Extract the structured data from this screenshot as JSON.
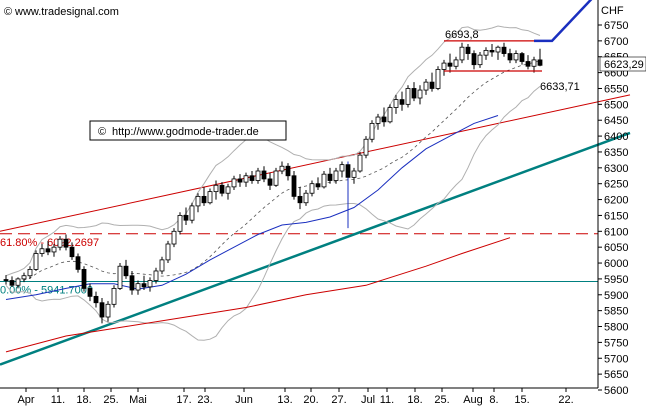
{
  "header": {
    "brand": "www.tradesignal.com",
    "copyright_symbol": "©",
    "copyright_url": "http://www.godmode-trader.de",
    "currency": "CHF",
    "last_price": "6623,29"
  },
  "chart_data": {
    "type": "candlestick",
    "ylim": [
      5600,
      6850
    ],
    "y_ticks": [
      6750,
      6700,
      6650,
      6600,
      6550,
      6500,
      6450,
      6400,
      6350,
      6300,
      6250,
      6200,
      6150,
      6100,
      6050,
      6000,
      5950,
      5900,
      5850,
      5800,
      5750,
      5700,
      5650,
      5600
    ],
    "x_ticks": [
      "Apr",
      "11.",
      "18.",
      "25.",
      "Mai",
      "17.",
      "23.",
      "Jun",
      "13.",
      "20.",
      "27.",
      "Jul",
      "11.",
      "18.",
      "25.",
      "Aug",
      "8.",
      "15.",
      "22."
    ],
    "horizontal_lines": [
      {
        "label": "61.80% - 6092.2697",
        "value": 6092.27,
        "color": "#cc0000",
        "style": "dashed"
      },
      {
        "label": "0.00% - 5941.7002",
        "value": 5941.7,
        "color": "#008080",
        "style": "solid"
      },
      {
        "label": "",
        "value": 6840,
        "color": "#cc0000",
        "style": "solid"
      }
    ],
    "annotations": [
      {
        "text": "6693,8",
        "value": 6693.8
      },
      {
        "text": "6633,71",
        "value": 6633.71
      }
    ],
    "trend_lines": [
      {
        "name": "",
        "color": "#008080",
        "from": [
          0,
          5680
        ],
        "to": [
          104,
          6410
        ]
      },
      {
        "name": "",
        "color": "#cc0000",
        "from": [
          0,
          6100
        ],
        "to": [
          104,
          6530
        ]
      }
    ],
    "candles": [
      {
        "o": 5948,
        "h": 5962,
        "l": 5932,
        "c": 5945
      },
      {
        "o": 5945,
        "h": 5958,
        "l": 5925,
        "c": 5930
      },
      {
        "o": 5930,
        "h": 5955,
        "l": 5920,
        "c": 5950
      },
      {
        "o": 5950,
        "h": 5970,
        "l": 5940,
        "c": 5960
      },
      {
        "o": 5960,
        "h": 5990,
        "l": 5950,
        "c": 5980
      },
      {
        "o": 5980,
        "h": 6040,
        "l": 5975,
        "c": 6030
      },
      {
        "o": 6030,
        "h": 6060,
        "l": 6020,
        "c": 6045
      },
      {
        "o": 6045,
        "h": 6070,
        "l": 6025,
        "c": 6035
      },
      {
        "o": 6035,
        "h": 6060,
        "l": 6020,
        "c": 6050
      },
      {
        "o": 6050,
        "h": 6085,
        "l": 6040,
        "c": 6075
      },
      {
        "o": 6075,
        "h": 6090,
        "l": 6040,
        "c": 6050
      },
      {
        "o": 6050,
        "h": 6065,
        "l": 6010,
        "c": 6020
      },
      {
        "o": 6020,
        "h": 6030,
        "l": 5970,
        "c": 5980
      },
      {
        "o": 5980,
        "h": 5990,
        "l": 5910,
        "c": 5920
      },
      {
        "o": 5920,
        "h": 5935,
        "l": 5880,
        "c": 5895
      },
      {
        "o": 5895,
        "h": 5910,
        "l": 5860,
        "c": 5875
      },
      {
        "o": 5875,
        "h": 5890,
        "l": 5810,
        "c": 5830
      },
      {
        "o": 5830,
        "h": 5880,
        "l": 5815,
        "c": 5870
      },
      {
        "o": 5870,
        "h": 5930,
        "l": 5860,
        "c": 5920
      },
      {
        "o": 5920,
        "h": 6000,
        "l": 5915,
        "c": 5990
      },
      {
        "o": 5990,
        "h": 6010,
        "l": 5950,
        "c": 5960
      },
      {
        "o": 5960,
        "h": 5975,
        "l": 5900,
        "c": 5915
      },
      {
        "o": 5915,
        "h": 5945,
        "l": 5900,
        "c": 5935
      },
      {
        "o": 5935,
        "h": 5960,
        "l": 5915,
        "c": 5925
      },
      {
        "o": 5925,
        "h": 5955,
        "l": 5910,
        "c": 5945
      },
      {
        "o": 5945,
        "h": 5985,
        "l": 5935,
        "c": 5975
      },
      {
        "o": 5975,
        "h": 6020,
        "l": 5965,
        "c": 6010
      },
      {
        "o": 6010,
        "h": 6070,
        "l": 6000,
        "c": 6060
      },
      {
        "o": 6060,
        "h": 6110,
        "l": 6050,
        "c": 6100
      },
      {
        "o": 6100,
        "h": 6160,
        "l": 6090,
        "c": 6150
      },
      {
        "o": 6150,
        "h": 6175,
        "l": 6120,
        "c": 6135
      },
      {
        "o": 6135,
        "h": 6190,
        "l": 6125,
        "c": 6180
      },
      {
        "o": 6180,
        "h": 6220,
        "l": 6160,
        "c": 6210
      },
      {
        "o": 6210,
        "h": 6240,
        "l": 6180,
        "c": 6190
      },
      {
        "o": 6190,
        "h": 6235,
        "l": 6185,
        "c": 6225
      },
      {
        "o": 6225,
        "h": 6260,
        "l": 6200,
        "c": 6245
      },
      {
        "o": 6245,
        "h": 6255,
        "l": 6210,
        "c": 6220
      },
      {
        "o": 6220,
        "h": 6250,
        "l": 6200,
        "c": 6240
      },
      {
        "o": 6240,
        "h": 6275,
        "l": 6230,
        "c": 6265
      },
      {
        "o": 6265,
        "h": 6280,
        "l": 6240,
        "c": 6255
      },
      {
        "o": 6255,
        "h": 6285,
        "l": 6240,
        "c": 6275
      },
      {
        "o": 6275,
        "h": 6290,
        "l": 6250,
        "c": 6260
      },
      {
        "o": 6260,
        "h": 6300,
        "l": 6250,
        "c": 6290
      },
      {
        "o": 6290,
        "h": 6305,
        "l": 6255,
        "c": 6265
      },
      {
        "o": 6265,
        "h": 6285,
        "l": 6230,
        "c": 6245
      },
      {
        "o": 6245,
        "h": 6300,
        "l": 6240,
        "c": 6290
      },
      {
        "o": 6290,
        "h": 6320,
        "l": 6280,
        "c": 6305
      },
      {
        "o": 6305,
        "h": 6315,
        "l": 6260,
        "c": 6275
      },
      {
        "o": 6275,
        "h": 6290,
        "l": 6200,
        "c": 6210
      },
      {
        "o": 6210,
        "h": 6240,
        "l": 6170,
        "c": 6190
      },
      {
        "o": 6190,
        "h": 6230,
        "l": 6180,
        "c": 6220
      },
      {
        "o": 6220,
        "h": 6260,
        "l": 6210,
        "c": 6250
      },
      {
        "o": 6250,
        "h": 6270,
        "l": 6230,
        "c": 6240
      },
      {
        "o": 6240,
        "h": 6290,
        "l": 6235,
        "c": 6280
      },
      {
        "o": 6280,
        "h": 6300,
        "l": 6250,
        "c": 6260
      },
      {
        "o": 6260,
        "h": 6300,
        "l": 6250,
        "c": 6290
      },
      {
        "o": 6290,
        "h": 6320,
        "l": 6270,
        "c": 6310
      },
      {
        "o": 6310,
        "h": 6320,
        "l": 6110,
        "c": 6270
      },
      {
        "o": 6270,
        "h": 6300,
        "l": 6250,
        "c": 6290
      },
      {
        "o": 6290,
        "h": 6350,
        "l": 6285,
        "c": 6340
      },
      {
        "o": 6340,
        "h": 6400,
        "l": 6330,
        "c": 6390
      },
      {
        "o": 6390,
        "h": 6450,
        "l": 6380,
        "c": 6440
      },
      {
        "o": 6440,
        "h": 6470,
        "l": 6420,
        "c": 6460
      },
      {
        "o": 6460,
        "h": 6490,
        "l": 6430,
        "c": 6445
      },
      {
        "o": 6445,
        "h": 6500,
        "l": 6440,
        "c": 6490
      },
      {
        "o": 6490,
        "h": 6530,
        "l": 6470,
        "c": 6515
      },
      {
        "o": 6515,
        "h": 6540,
        "l": 6480,
        "c": 6500
      },
      {
        "o": 6500,
        "h": 6560,
        "l": 6490,
        "c": 6550
      },
      {
        "o": 6550,
        "h": 6570,
        "l": 6510,
        "c": 6520
      },
      {
        "o": 6520,
        "h": 6560,
        "l": 6500,
        "c": 6545
      },
      {
        "o": 6545,
        "h": 6580,
        "l": 6530,
        "c": 6570
      },
      {
        "o": 6570,
        "h": 6600,
        "l": 6540,
        "c": 6550
      },
      {
        "o": 6550,
        "h": 6620,
        "l": 6545,
        "c": 6610
      },
      {
        "o": 6610,
        "h": 6640,
        "l": 6590,
        "c": 6630
      },
      {
        "o": 6630,
        "h": 6660,
        "l": 6600,
        "c": 6620
      },
      {
        "o": 6620,
        "h": 6650,
        "l": 6610,
        "c": 6640
      },
      {
        "o": 6640,
        "h": 6694,
        "l": 6630,
        "c": 6680
      },
      {
        "o": 6680,
        "h": 6690,
        "l": 6640,
        "c": 6660
      },
      {
        "o": 6660,
        "h": 6670,
        "l": 6610,
        "c": 6625
      },
      {
        "o": 6625,
        "h": 6665,
        "l": 6615,
        "c": 6655
      },
      {
        "o": 6655,
        "h": 6680,
        "l": 6640,
        "c": 6670
      },
      {
        "o": 6670,
        "h": 6690,
        "l": 6650,
        "c": 6665
      },
      {
        "o": 6665,
        "h": 6685,
        "l": 6640,
        "c": 6680
      },
      {
        "o": 6680,
        "h": 6694,
        "l": 6650,
        "c": 6660
      },
      {
        "o": 6660,
        "h": 6675,
        "l": 6630,
        "c": 6640
      },
      {
        "o": 6640,
        "h": 6670,
        "l": 6630,
        "c": 6660
      },
      {
        "o": 6660,
        "h": 6665,
        "l": 6625,
        "c": 6635
      },
      {
        "o": 6635,
        "h": 6655,
        "l": 6610,
        "c": 6620
      },
      {
        "o": 6620,
        "h": 6650,
        "l": 6600,
        "c": 6640
      },
      {
        "o": 6640,
        "h": 6675,
        "l": 6620,
        "c": 6623
      }
    ],
    "sma_blue": [
      [
        0,
        5885
      ],
      [
        5,
        5900
      ],
      [
        10,
        5920
      ],
      [
        14,
        5935
      ],
      [
        18,
        5935
      ],
      [
        22,
        5918
      ],
      [
        26,
        5930
      ],
      [
        30,
        5965
      ],
      [
        34,
        6010
      ],
      [
        38,
        6050
      ],
      [
        42,
        6090
      ],
      [
        46,
        6120
      ],
      [
        50,
        6128
      ],
      [
        54,
        6145
      ],
      [
        58,
        6175
      ],
      [
        62,
        6230
      ],
      [
        66,
        6300
      ],
      [
        70,
        6360
      ],
      [
        74,
        6400
      ],
      [
        78,
        6440
      ],
      [
        82,
        6465
      ]
    ],
    "sma_red": [
      [
        0,
        5720
      ],
      [
        10,
        5770
      ],
      [
        20,
        5800
      ],
      [
        30,
        5830
      ],
      [
        40,
        5860
      ],
      [
        50,
        5900
      ],
      [
        60,
        5930
      ],
      [
        70,
        5990
      ],
      [
        76,
        6030
      ],
      [
        84,
        6080
      ]
    ],
    "projection": [
      [
        83,
        6700
      ],
      [
        86,
        6700
      ],
      [
        90,
        6840
      ]
    ],
    "range_lines": [
      {
        "value": 6700,
        "from": 73,
        "to": 86
      },
      {
        "value": 6605,
        "from": 73,
        "to": 86
      }
    ]
  }
}
